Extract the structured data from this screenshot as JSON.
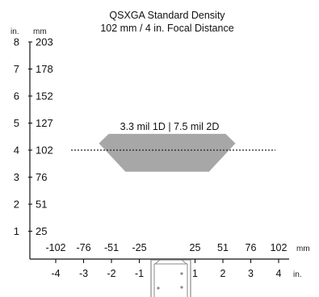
{
  "chart_data": {
    "type": "area",
    "title": "QSXGA Standard Density",
    "subtitle": "102 mm / 4 in. Focal Distance",
    "annotation": "3.3 mil 1D | 7.5 mil 2D",
    "y_axis": {
      "unit_left": "in.",
      "unit_right": "mm",
      "ticks_in": [
        "1",
        "2",
        "3",
        "4",
        "5",
        "6",
        "7",
        "8"
      ],
      "ticks_mm": [
        "25",
        "51",
        "76",
        "102",
        "127",
        "152",
        "178",
        "203"
      ],
      "ylim_in": [
        0,
        8
      ]
    },
    "x_axis": {
      "unit_mm": "mm",
      "unit_in": "in.",
      "ticks_mm": [
        "-102",
        "-76",
        "-51",
        "-25",
        "25",
        "51",
        "76",
        "102"
      ],
      "ticks_in": [
        "-4",
        "-3",
        "-2",
        "-1",
        "1",
        "2",
        "3",
        "4"
      ],
      "xlim_in": [
        -4,
        4
      ]
    },
    "focal_distance_in": 4,
    "field_polygon": {
      "x_in": [
        -2.1,
        2.1,
        2.45,
        1.5,
        -1.5,
        -2.45
      ],
      "y_in": [
        4.6,
        4.6,
        4.25,
        3.2,
        3.2,
        4.25
      ]
    },
    "colors": {
      "field": "#a6a7a6",
      "axis": "#111111",
      "reader": "#8a8a8a"
    }
  }
}
